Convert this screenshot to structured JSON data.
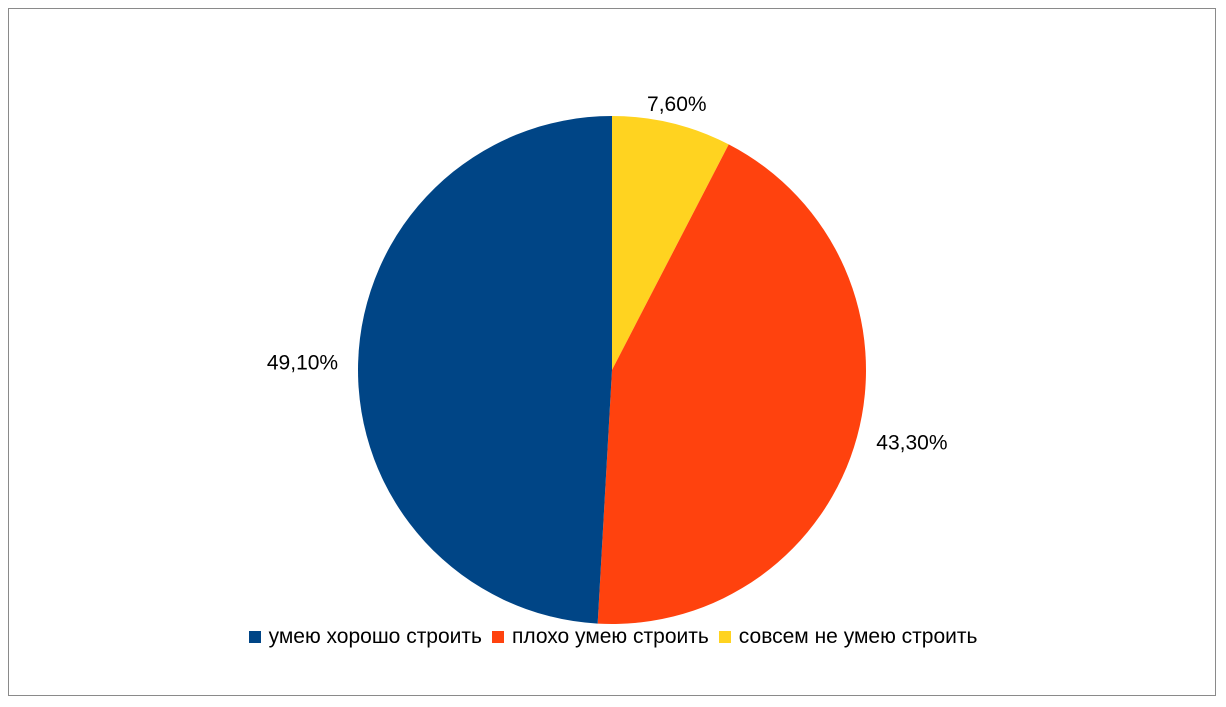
{
  "chart_data": {
    "type": "pie",
    "title": "",
    "legend_position": "bottom",
    "slices": [
      {
        "label": "совсем не умею строить",
        "value": 7.6,
        "display": "7,60%",
        "color": "#ffd320"
      },
      {
        "label": "плохо умею строить",
        "value": 43.3,
        "display": "43,30%",
        "color": "#ff420e"
      },
      {
        "label": "умею хорошо строить",
        "value": 49.1,
        "display": "49,10%",
        "color": "#004586"
      }
    ],
    "legend": [
      {
        "label": "умею хорошо строить",
        "color": "#004586"
      },
      {
        "label": "плохо умею строить",
        "color": "#ff420e"
      },
      {
        "label": "совсем не умею строить",
        "color": "#ffd320"
      }
    ]
  }
}
